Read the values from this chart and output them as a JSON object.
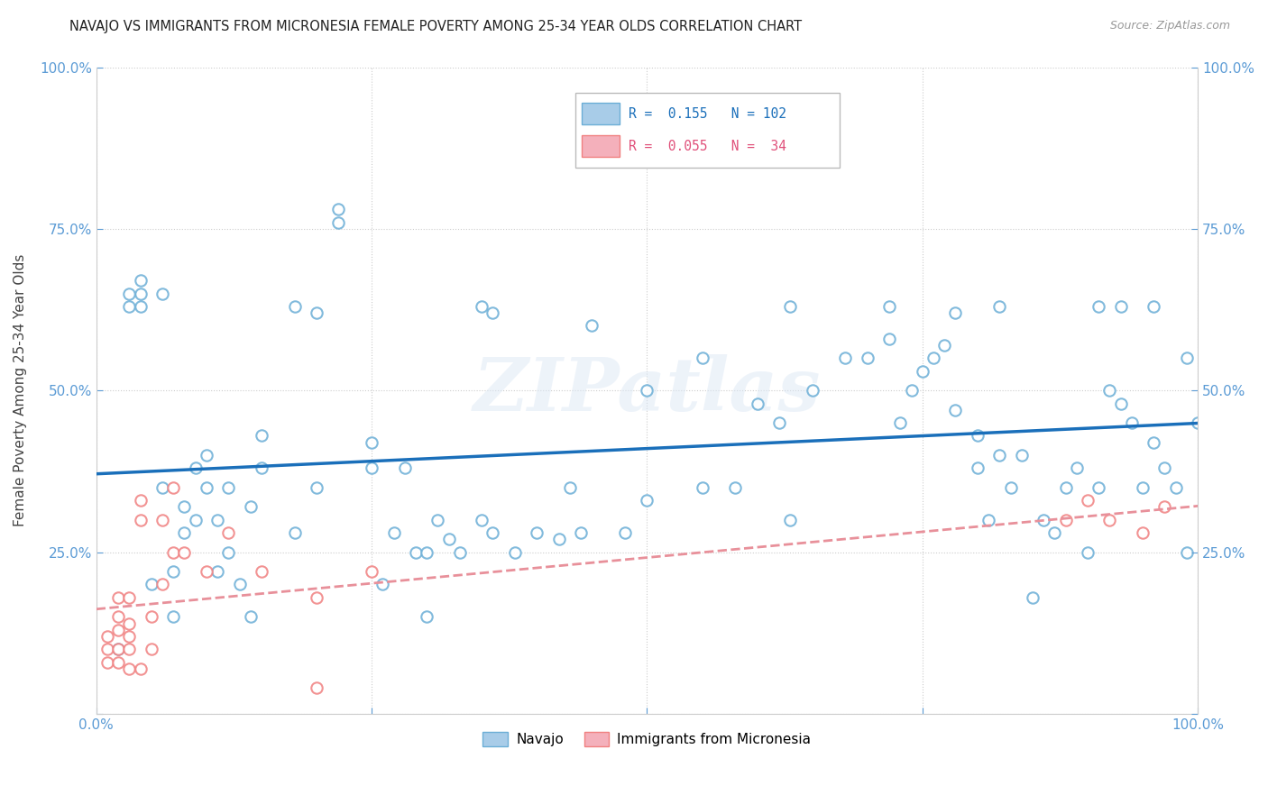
{
  "title": "NAVAJO VS IMMIGRANTS FROM MICRONESIA FEMALE POVERTY AMONG 25-34 YEAR OLDS CORRELATION CHART",
  "source": "Source: ZipAtlas.com",
  "ylabel": "Female Poverty Among 25-34 Year Olds",
  "watermark": "ZIPatlas",
  "r_navajo": 0.155,
  "n_navajo": 102,
  "r_micro": 0.055,
  "n_micro": 34,
  "navajo_color": "#6baed6",
  "micro_color": "#f08080",
  "navajo_line_color": "#1a6fba",
  "micro_line_color": "#e8909a",
  "navajo_scatter_x": [
    0.02,
    0.04,
    0.04,
    0.05,
    0.06,
    0.07,
    0.07,
    0.08,
    0.08,
    0.09,
    0.09,
    0.1,
    0.1,
    0.11,
    0.11,
    0.12,
    0.12,
    0.13,
    0.14,
    0.14,
    0.15,
    0.15,
    0.18,
    0.2,
    0.22,
    0.22,
    0.25,
    0.25,
    0.26,
    0.27,
    0.28,
    0.29,
    0.3,
    0.3,
    0.31,
    0.32,
    0.33,
    0.35,
    0.36,
    0.38,
    0.4,
    0.42,
    0.43,
    0.44,
    0.45,
    0.48,
    0.5,
    0.55,
    0.58,
    0.6,
    0.62,
    0.63,
    0.65,
    0.68,
    0.7,
    0.72,
    0.73,
    0.74,
    0.75,
    0.76,
    0.77,
    0.78,
    0.8,
    0.8,
    0.81,
    0.82,
    0.83,
    0.84,
    0.85,
    0.86,
    0.87,
    0.88,
    0.89,
    0.9,
    0.91,
    0.92,
    0.93,
    0.94,
    0.95,
    0.96,
    0.97,
    0.98,
    0.99,
    1.0,
    0.03,
    0.03,
    0.04,
    0.18,
    0.35,
    0.5,
    0.63,
    0.72,
    0.82,
    0.91,
    0.93,
    0.96,
    0.99,
    0.06,
    0.2,
    0.36,
    0.55,
    0.78
  ],
  "navajo_scatter_y": [
    0.1,
    0.67,
    0.65,
    0.2,
    0.35,
    0.22,
    0.15,
    0.28,
    0.32,
    0.38,
    0.3,
    0.4,
    0.35,
    0.3,
    0.22,
    0.35,
    0.25,
    0.2,
    0.32,
    0.15,
    0.43,
    0.38,
    0.28,
    0.35,
    0.76,
    0.78,
    0.38,
    0.42,
    0.2,
    0.28,
    0.38,
    0.25,
    0.25,
    0.15,
    0.3,
    0.27,
    0.25,
    0.3,
    0.28,
    0.25,
    0.28,
    0.27,
    0.35,
    0.28,
    0.6,
    0.28,
    0.33,
    0.35,
    0.35,
    0.48,
    0.45,
    0.3,
    0.5,
    0.55,
    0.55,
    0.58,
    0.45,
    0.5,
    0.53,
    0.55,
    0.57,
    0.47,
    0.43,
    0.38,
    0.3,
    0.4,
    0.35,
    0.4,
    0.18,
    0.3,
    0.28,
    0.35,
    0.38,
    0.25,
    0.35,
    0.5,
    0.48,
    0.45,
    0.35,
    0.42,
    0.38,
    0.35,
    0.25,
    0.45,
    0.65,
    0.63,
    0.63,
    0.63,
    0.63,
    0.5,
    0.63,
    0.63,
    0.63,
    0.63,
    0.63,
    0.63,
    0.55,
    0.65,
    0.62,
    0.62,
    0.55,
    0.62
  ],
  "micro_scatter_x": [
    0.01,
    0.01,
    0.01,
    0.02,
    0.02,
    0.02,
    0.02,
    0.02,
    0.03,
    0.03,
    0.03,
    0.03,
    0.03,
    0.04,
    0.04,
    0.04,
    0.05,
    0.05,
    0.06,
    0.06,
    0.07,
    0.07,
    0.08,
    0.1,
    0.12,
    0.15,
    0.2,
    0.25,
    0.88,
    0.9,
    0.92,
    0.95,
    0.97,
    0.2
  ],
  "micro_scatter_y": [
    0.08,
    0.1,
    0.12,
    0.08,
    0.1,
    0.13,
    0.15,
    0.18,
    0.07,
    0.1,
    0.12,
    0.14,
    0.18,
    0.07,
    0.3,
    0.33,
    0.1,
    0.15,
    0.3,
    0.2,
    0.25,
    0.35,
    0.25,
    0.22,
    0.28,
    0.22,
    0.18,
    0.22,
    0.3,
    0.33,
    0.3,
    0.28,
    0.32,
    0.04
  ]
}
